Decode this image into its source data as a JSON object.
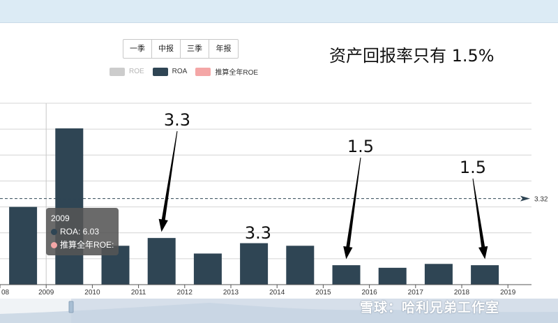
{
  "period_buttons": [
    "一季",
    "中报",
    "三季",
    "年报"
  ],
  "headline": "资产回报率只有 1.5%",
  "legend": [
    {
      "label": "ROE",
      "color": "#cccccc",
      "active": false
    },
    {
      "label": "ROA",
      "color": "#2f4554",
      "active": true
    },
    {
      "label": "推算全年ROE",
      "color": "#f4a6a6",
      "active": true
    }
  ],
  "tooltip": {
    "year": "2009",
    "roa_line": "ROA: 6.03",
    "roe_line": "推算全年ROE:",
    "roa_color": "#2f4554",
    "roe_color": "#f4a6a6"
  },
  "watermark": "雪球：哈利兄弟工作室",
  "chart_data": {
    "type": "bar",
    "x_ticks": [
      "08",
      "2009",
      "2010",
      "2011",
      "2012",
      "2013",
      "2014",
      "2015",
      "2016",
      "2017",
      "2018",
      "2019"
    ],
    "series": [
      {
        "name": "ROA",
        "color": "#2f4554",
        "values": [
          3.0,
          6.03,
          1.5,
          1.8,
          1.2,
          1.6,
          1.5,
          0.75,
          0.65,
          0.8,
          0.75
        ]
      }
    ],
    "ylim": [
      0,
      7
    ],
    "average_line": {
      "value": 3.32,
      "label": "3.32"
    },
    "annotations": [
      {
        "text": "3.3",
        "bar_index": 3
      },
      {
        "text": "3.3",
        "bar_index": 5
      },
      {
        "text": "1.5",
        "bar_index": 7
      },
      {
        "text": "1.5",
        "bar_index": 10
      }
    ],
    "grid": true
  }
}
